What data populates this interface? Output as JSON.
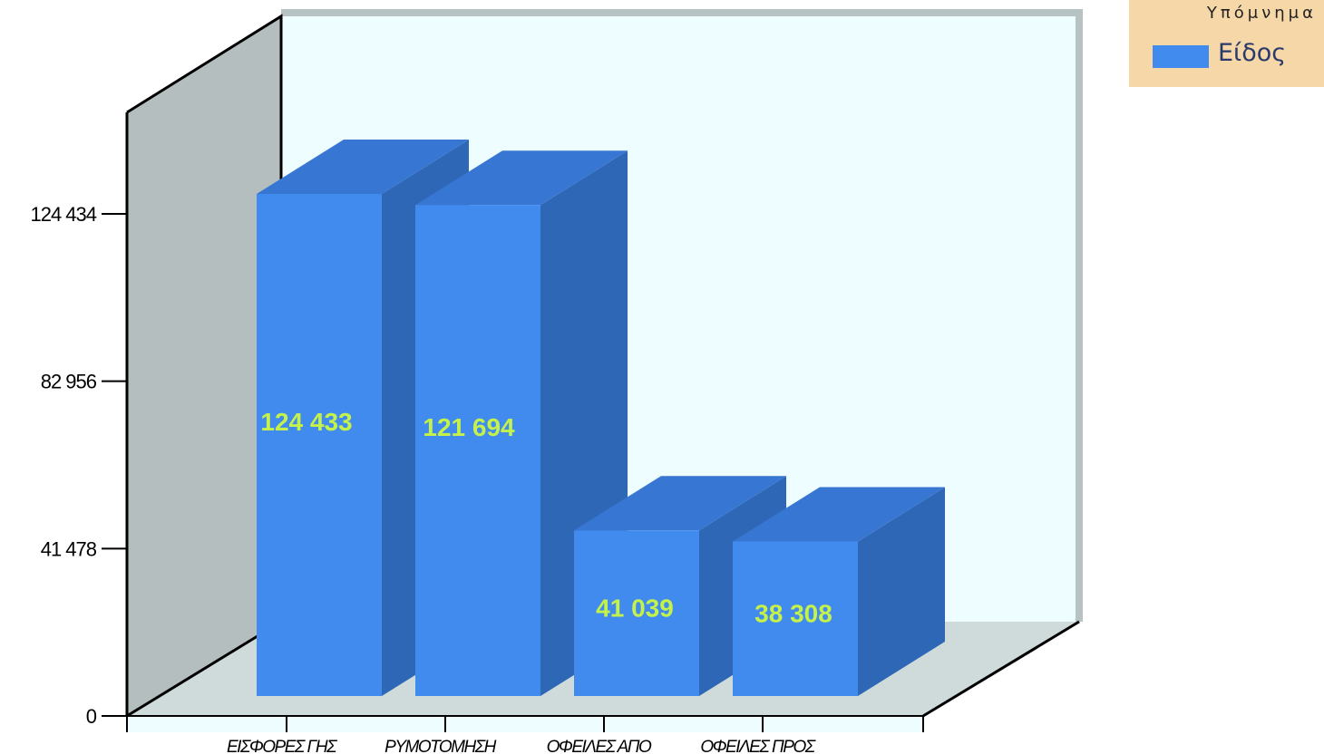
{
  "chart_data": {
    "type": "bar",
    "categories": [
      "ΕΙΣΦΟΡΕΣ ΓΗΣ",
      "ΡΥΜΟΤΟΜΗΣΗ",
      "ΟΦΕΙΛΕΣ ΑΠΟ",
      "ΟΦΕΙΛΕΣ ΠΡΟΣ"
    ],
    "series": [
      {
        "name": "Είδος",
        "values": [
          124433,
          121694,
          41039,
          38308
        ]
      }
    ],
    "value_labels": [
      "124 433",
      "121 694",
      "41 039",
      "38 308"
    ],
    "yticks": [
      {
        "value": 0,
        "label": "0"
      },
      {
        "value": 41478,
        "label": "41 478"
      },
      {
        "value": 82956,
        "label": "82 956"
      },
      {
        "value": 124434,
        "label": "124 434"
      }
    ],
    "ylim": [
      0,
      124434
    ],
    "legend_title": "Υπόμνημα",
    "legend_position": "top-right",
    "style": "3d",
    "colors": {
      "bar_front": "#418aee",
      "bar_top": "#3777d3",
      "bar_side": "#2f67b7",
      "value_label": "#c4f24a",
      "back_wall": "#eefdff",
      "side_wall": "#b4bebe",
      "floor": "#cfdbdb",
      "legend_bg": "#f5d7a8"
    }
  }
}
